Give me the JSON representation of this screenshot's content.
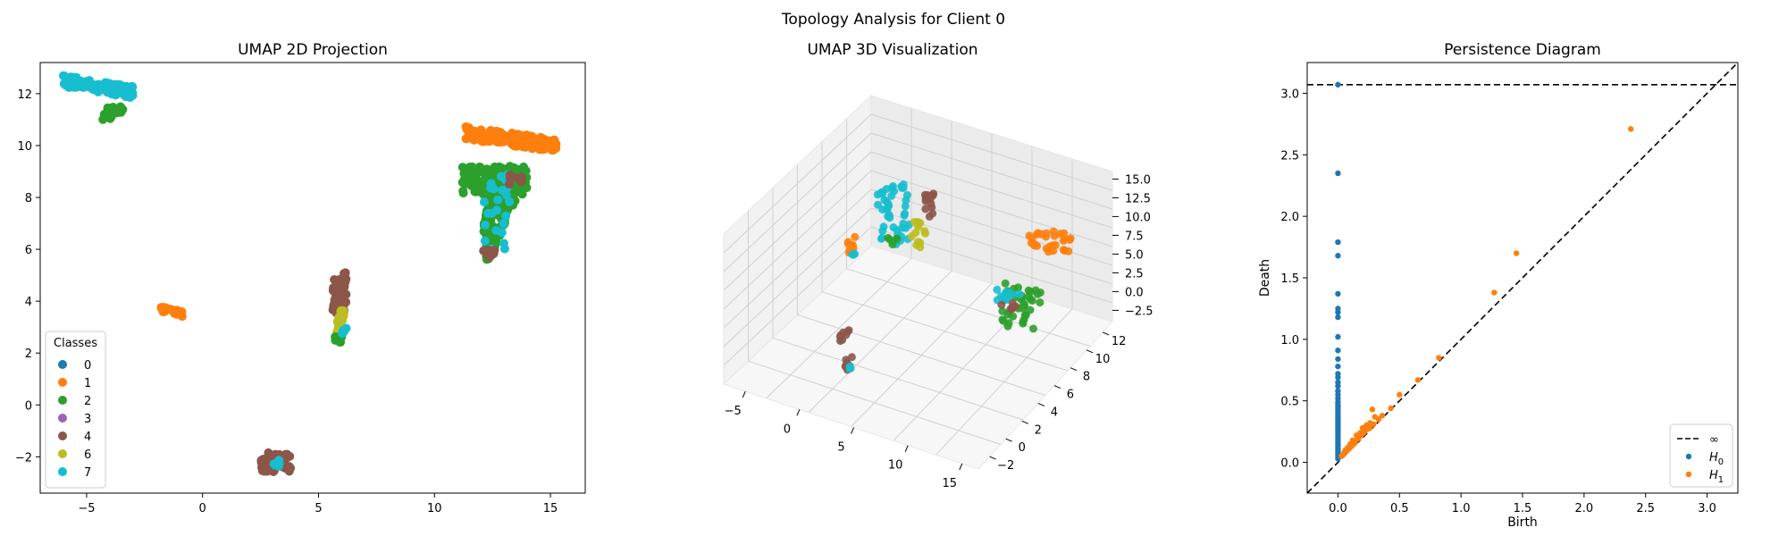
{
  "figure_title": "Topology Analysis for Client 0",
  "colors": {
    "0": "#1f77b4",
    "1": "#ff7f0e",
    "2": "#2ca02c",
    "3": "#9467bd",
    "4": "#8c564b",
    "6": "#bcbd22",
    "7": "#17becf"
  },
  "chart_data": [
    {
      "type": "scatter",
      "title": "UMAP 2D Projection",
      "xlim": [
        -7,
        16.5
      ],
      "ylim": [
        -3.4,
        13.2
      ],
      "xticks": [
        -5,
        0,
        5,
        10,
        15
      ],
      "yticks": [
        -2,
        0,
        2,
        4,
        6,
        8,
        10,
        12
      ],
      "legend": {
        "title": "Classes",
        "position": "lower-left",
        "entries": [
          "0",
          "1",
          "2",
          "3",
          "4",
          "6",
          "7"
        ]
      },
      "clusters": [
        {
          "class": "7",
          "x": [
            -6,
            -3
          ],
          "y": [
            11.6,
            12.5
          ],
          "shape": "band",
          "count": 120
        },
        {
          "class": "2",
          "x": [
            -4.3,
            -3.4
          ],
          "y": [
            11,
            11.5
          ],
          "shape": "blob",
          "count": 25
        },
        {
          "class": "1",
          "x": [
            -1.8,
            -0.8
          ],
          "y": [
            3.3,
            3.7
          ],
          "shape": "band",
          "count": 30
        },
        {
          "class": "4",
          "x": [
            2.5,
            3.8
          ],
          "y": [
            -2.6,
            -1.8
          ],
          "shape": "blob",
          "count": 50
        },
        {
          "class": "7",
          "x": [
            3,
            3.4
          ],
          "y": [
            -2.4,
            -2.1
          ],
          "shape": "blob",
          "count": 6
        },
        {
          "class": "4",
          "x": [
            5.6,
            6.2
          ],
          "y": [
            3.5,
            5.1
          ],
          "shape": "blob",
          "count": 50
        },
        {
          "class": "6",
          "x": [
            5.8,
            6.1
          ],
          "y": [
            2.7,
            3.7
          ],
          "shape": "blob",
          "count": 20
        },
        {
          "class": "2",
          "x": [
            5.7,
            6.0
          ],
          "y": [
            2.4,
            2.7
          ],
          "shape": "blob",
          "count": 8
        },
        {
          "class": "7",
          "x": [
            6.0,
            6.2
          ],
          "y": [
            2.6,
            3.0
          ],
          "shape": "blob",
          "count": 6
        },
        {
          "class": "1",
          "x": [
            11.3,
            15.3
          ],
          "y": [
            9.5,
            10.5
          ],
          "shape": "band",
          "count": 150
        },
        {
          "class": "2",
          "x": [
            11.2,
            14
          ],
          "y": [
            8.1,
            9.2
          ],
          "shape": "blob",
          "count": 120
        },
        {
          "class": "2",
          "x": [
            11.9,
            13.6
          ],
          "y": [
            5.6,
            8.6
          ],
          "shape": "wedge",
          "count": 150
        },
        {
          "class": "7",
          "x": [
            12.1,
            13.3
          ],
          "y": [
            6.0,
            9.0
          ],
          "shape": "blob",
          "count": 25
        },
        {
          "class": "4",
          "x": [
            12,
            12.6
          ],
          "y": [
            5.7,
            6.0
          ],
          "shape": "blob",
          "count": 12
        },
        {
          "class": "4",
          "x": [
            13.1,
            13.8
          ],
          "y": [
            8.5,
            8.9
          ],
          "shape": "blob",
          "count": 10
        }
      ]
    },
    {
      "type": "scatter",
      "title": "UMAP 3D Visualization",
      "xticks": [
        -5,
        0,
        5,
        10,
        15
      ],
      "yticks": [
        -2,
        0,
        2,
        4,
        6,
        8,
        10,
        12
      ],
      "zticks": [
        -2.5,
        0.0,
        2.5,
        5.0,
        7.5,
        10.0,
        12.5,
        15.0
      ],
      "xlim": [
        -7,
        16.5
      ],
      "ylim": [
        -3.4,
        13.2
      ],
      "zlim": [
        -4,
        16
      ]
    },
    {
      "type": "scatter",
      "title": "Persistence Diagram",
      "xlabel": "Birth",
      "ylabel": "Death",
      "xlim": [
        -0.25,
        3.25
      ],
      "ylim": [
        -0.25,
        3.25
      ],
      "xticks": [
        0.0,
        0.5,
        1.0,
        1.5,
        2.0,
        2.5,
        3.0
      ],
      "yticks": [
        0.0,
        0.5,
        1.0,
        1.5,
        2.0,
        2.5,
        3.0
      ],
      "infinity_line": 3.07,
      "legend": {
        "position": "lower-right",
        "entries": [
          "∞",
          "H0",
          "H1"
        ]
      },
      "H0_death": [
        3.07,
        2.35,
        1.79,
        1.68,
        1.37,
        1.25,
        1.22,
        1.18,
        1.02,
        0.91,
        0.84,
        0.78,
        0.72,
        0.69,
        0.65,
        0.62,
        0.58,
        0.55,
        0.52,
        0.49,
        0.47,
        0.45,
        0.43,
        0.41,
        0.39,
        0.37,
        0.35,
        0.33,
        0.31,
        0.29,
        0.27,
        0.25,
        0.23,
        0.21,
        0.19,
        0.17,
        0.15,
        0.13,
        0.11,
        0.09,
        0.07,
        0.05,
        0.03
      ],
      "H1_points": [
        [
          2.38,
          2.71
        ],
        [
          1.45,
          1.7
        ],
        [
          1.27,
          1.38
        ],
        [
          0.82,
          0.85
        ],
        [
          0.65,
          0.67
        ],
        [
          0.5,
          0.55
        ],
        [
          0.43,
          0.44
        ],
        [
          0.28,
          0.43
        ],
        [
          0.3,
          0.37
        ],
        [
          0.26,
          0.32
        ],
        [
          0.23,
          0.3
        ],
        [
          0.2,
          0.28
        ],
        [
          0.18,
          0.24
        ],
        [
          0.15,
          0.22
        ],
        [
          0.22,
          0.26
        ],
        [
          0.12,
          0.18
        ],
        [
          0.1,
          0.15
        ],
        [
          0.08,
          0.12
        ],
        [
          0.06,
          0.1
        ],
        [
          0.05,
          0.08
        ],
        [
          0.04,
          0.06
        ],
        [
          0.14,
          0.16
        ],
        [
          0.17,
          0.2
        ],
        [
          0.19,
          0.22
        ],
        [
          0.24,
          0.27
        ],
        [
          0.26,
          0.28
        ],
        [
          0.11,
          0.13
        ],
        [
          0.09,
          0.11
        ],
        [
          0.03,
          0.05
        ],
        [
          0.07,
          0.09
        ],
        [
          0.13,
          0.15
        ],
        [
          0.16,
          0.19
        ],
        [
          0.21,
          0.24
        ],
        [
          0.29,
          0.31
        ],
        [
          0.33,
          0.35
        ],
        [
          0.36,
          0.38
        ]
      ]
    }
  ]
}
